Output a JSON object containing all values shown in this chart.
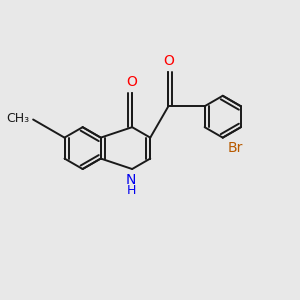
{
  "background_color": "#e8e8e8",
  "bond_color": "#1a1a1a",
  "atom_colors": {
    "O": "#ff0000",
    "N": "#0000ee",
    "Br": "#b85a00",
    "C": "#1a1a1a"
  },
  "font_size": 10,
  "figsize": [
    3.0,
    3.0
  ],
  "dpi": 100,
  "lw": 1.4
}
